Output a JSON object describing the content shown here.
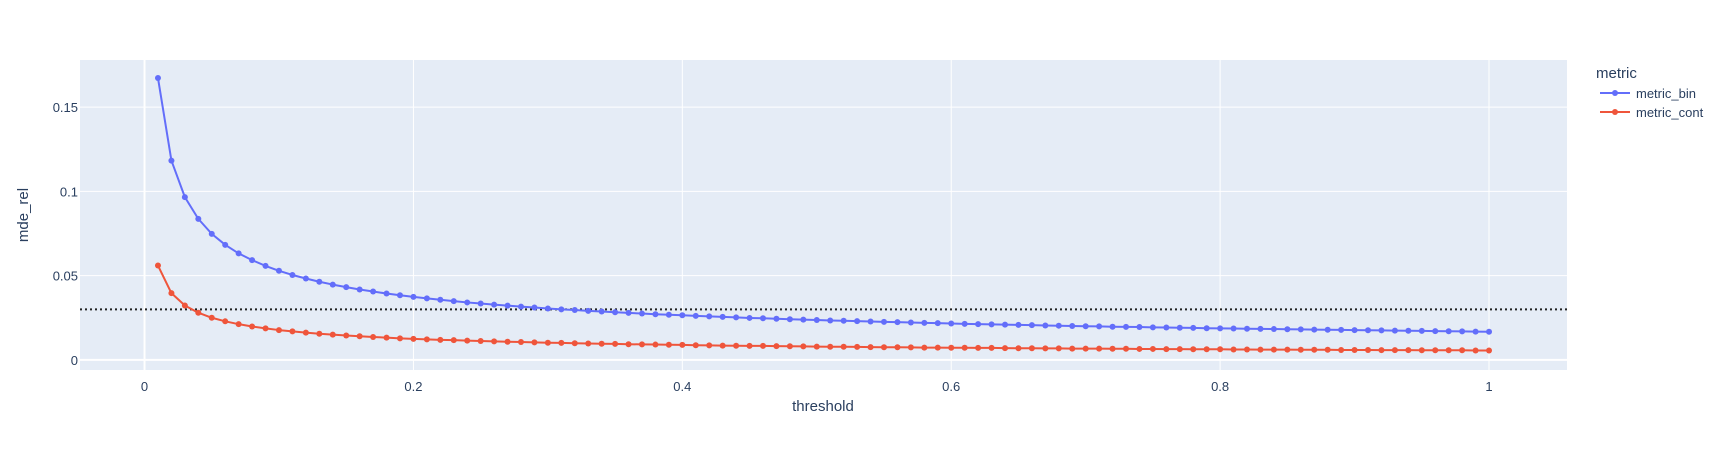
{
  "chart_data": {
    "type": "line",
    "xlabel": "threshold",
    "ylabel": "mde_rel",
    "xlim": [
      -0.048,
      1.058
    ],
    "ylim": [
      -0.006,
      0.178
    ],
    "x_ticks": [
      0,
      0.2,
      0.4,
      0.6,
      0.8,
      1
    ],
    "x_tick_labels": [
      "0",
      "0.2",
      "0.4",
      "0.6",
      "0.8",
      "1"
    ],
    "y_ticks": [
      0,
      0.05,
      0.1,
      0.15
    ],
    "y_tick_labels": [
      "0",
      "0.05",
      "0.1",
      "0.15"
    ],
    "grid": true,
    "legend": {
      "title": "metric",
      "position": "right"
    },
    "reference_line": {
      "y": 0.03,
      "style": "dotted",
      "color": "#222222"
    },
    "x_start": 0.01,
    "x_step": 0.01,
    "n_points": 100,
    "series": [
      {
        "name": "metric_bin",
        "color": "#636efa",
        "values": [
          0.1673,
          0.1183,
          0.0966,
          0.0837,
          0.0748,
          0.0683,
          0.0632,
          0.0592,
          0.0558,
          0.0529,
          0.0504,
          0.0483,
          0.0464,
          0.0447,
          0.0432,
          0.0418,
          0.0406,
          0.0394,
          0.0384,
          0.0374,
          0.0365,
          0.0357,
          0.0349,
          0.0341,
          0.0335,
          0.0328,
          0.0322,
          0.0316,
          0.0311,
          0.0305,
          0.03,
          0.0296,
          0.0291,
          0.0287,
          0.0283,
          0.0279,
          0.0275,
          0.0271,
          0.0268,
          0.0265,
          0.0261,
          0.0258,
          0.0255,
          0.0252,
          0.0249,
          0.0247,
          0.0244,
          0.0241,
          0.0239,
          0.0237,
          0.0234,
          0.0232,
          0.023,
          0.0228,
          0.0226,
          0.0224,
          0.0222,
          0.022,
          0.0218,
          0.0216,
          0.0214,
          0.0212,
          0.0211,
          0.0209,
          0.0208,
          0.0206,
          0.0204,
          0.0203,
          0.0201,
          0.02,
          0.0199,
          0.0197,
          0.0196,
          0.0195,
          0.0193,
          0.0192,
          0.0191,
          0.019,
          0.0188,
          0.0187,
          0.0186,
          0.0185,
          0.0184,
          0.0183,
          0.0182,
          0.0181,
          0.018,
          0.0179,
          0.0178,
          0.0177,
          0.0176,
          0.0175,
          0.0174,
          0.0173,
          0.0172,
          0.0171,
          0.017,
          0.0169,
          0.0168,
          0.0167
        ]
      },
      {
        "name": "metric_cont",
        "color": "#ef553b",
        "values": [
          0.056,
          0.0396,
          0.0323,
          0.028,
          0.025,
          0.0229,
          0.0212,
          0.0198,
          0.0187,
          0.0177,
          0.0169,
          0.0162,
          0.0155,
          0.015,
          0.0145,
          0.014,
          0.0136,
          0.0132,
          0.0128,
          0.0125,
          0.0122,
          0.0119,
          0.0117,
          0.0114,
          0.0112,
          0.011,
          0.0108,
          0.0106,
          0.0104,
          0.0102,
          0.0101,
          0.0099,
          0.0097,
          0.0096,
          0.0095,
          0.0093,
          0.0092,
          0.0091,
          0.009,
          0.0089,
          0.0087,
          0.0086,
          0.0085,
          0.0084,
          0.0083,
          0.0083,
          0.0082,
          0.0081,
          0.008,
          0.0079,
          0.0078,
          0.0078,
          0.0077,
          0.0076,
          0.0075,
          0.0075,
          0.0074,
          0.0073,
          0.0073,
          0.0072,
          0.0072,
          0.0071,
          0.0071,
          0.007,
          0.0069,
          0.0069,
          0.0068,
          0.0068,
          0.0067,
          0.0067,
          0.0067,
          0.0066,
          0.0066,
          0.0065,
          0.0065,
          0.0064,
          0.0064,
          0.0063,
          0.0063,
          0.0063,
          0.0062,
          0.0062,
          0.0061,
          0.0061,
          0.0061,
          0.006,
          0.006,
          0.006,
          0.0059,
          0.0059,
          0.0059,
          0.0058,
          0.0058,
          0.0058,
          0.0057,
          0.0057,
          0.0057,
          0.0057,
          0.0056,
          0.0056
        ]
      }
    ]
  }
}
